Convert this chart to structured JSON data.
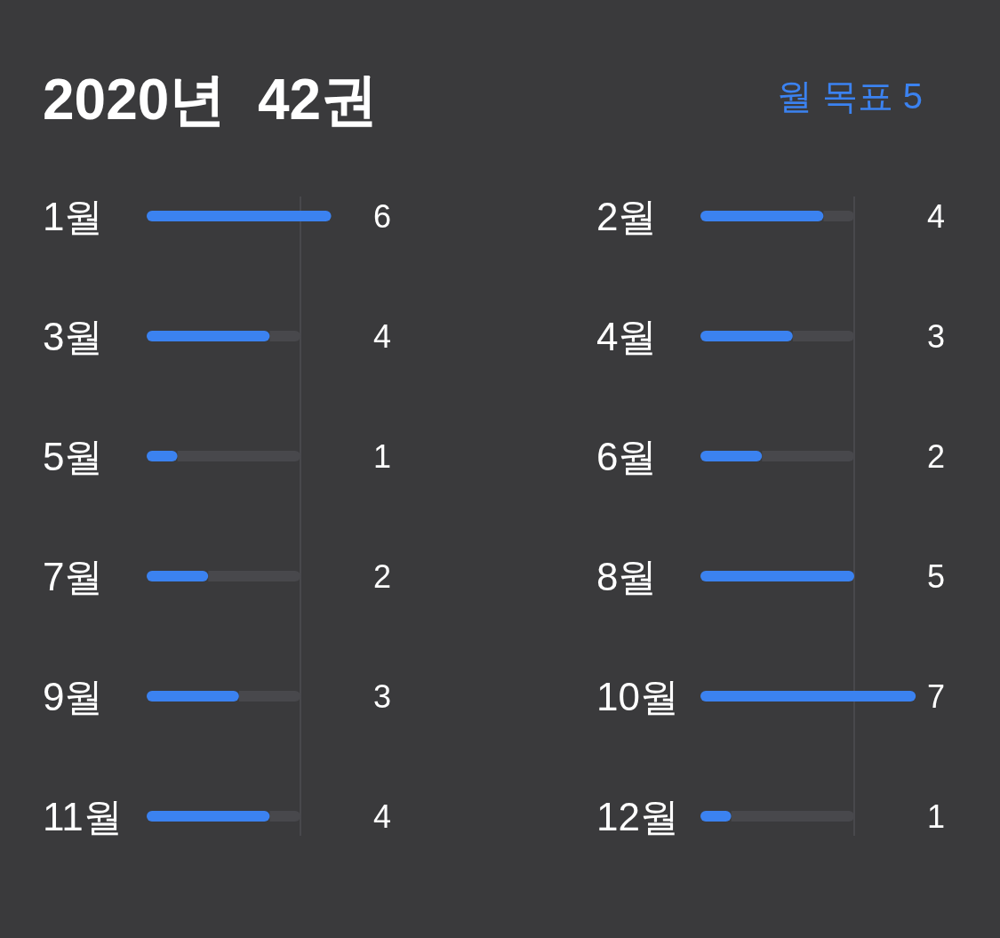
{
  "chart_data": [
    {
      "type": "bar",
      "orientation": "horizontal",
      "title": "2020년  42권",
      "categories": [
        "1월",
        "3월",
        "5월",
        "7월",
        "9월",
        "11월"
      ],
      "values": [
        6,
        4,
        1,
        2,
        3,
        4
      ],
      "color": "#3b82f0",
      "data_labels": true,
      "ref_lines": [
        {
          "axis": "x",
          "value": 5,
          "color": "#48484c"
        }
      ]
    },
    {
      "type": "bar",
      "orientation": "horizontal",
      "categories": [
        "2월",
        "4월",
        "6월",
        "8월",
        "10월",
        "12월"
      ],
      "values": [
        4,
        3,
        2,
        5,
        7,
        1
      ],
      "color": "#3b82f0",
      "data_labels": true,
      "ref_lines": [
        {
          "axis": "x",
          "value": 5,
          "label": "월 목표 5",
          "color": "#48484c"
        }
      ]
    }
  ]
}
